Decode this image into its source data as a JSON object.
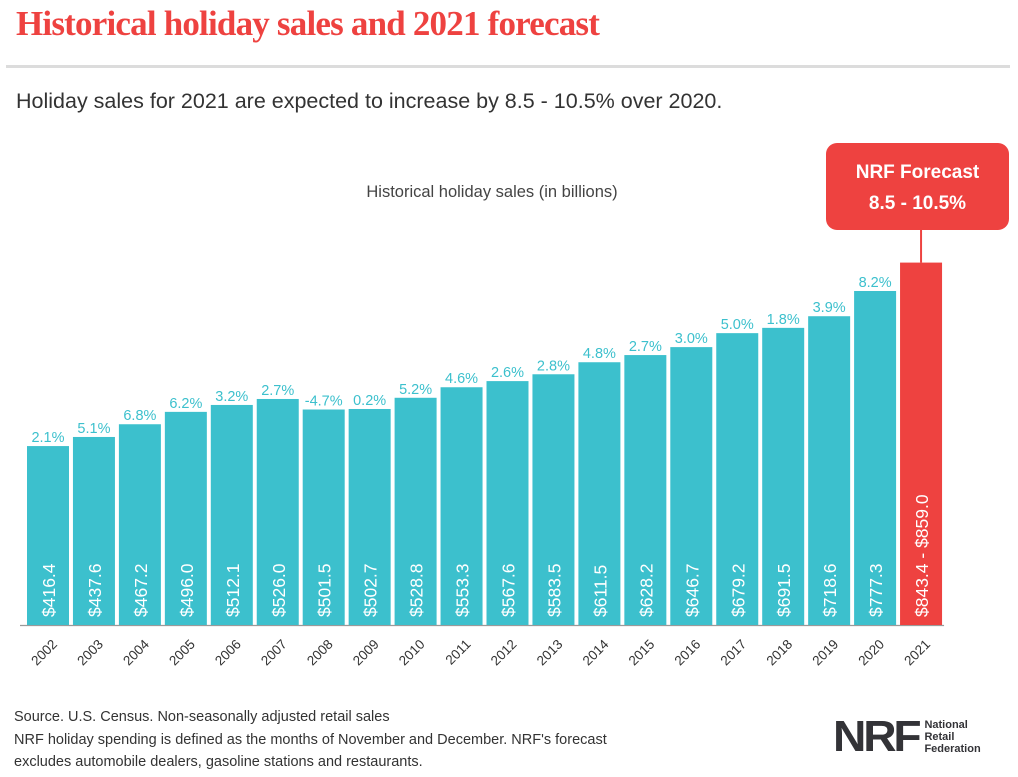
{
  "header": {
    "title": "Historical holiday sales and 2021 forecast",
    "subtitle": "Holiday sales for 2021 are expected to increase by 8.5 - 10.5% over 2020."
  },
  "colors": {
    "title": "#ee4240",
    "bar": "#3cc0cd",
    "forecast": "#ee4240",
    "pct_label": "#3cc0cd",
    "axis": "#9a9a9a"
  },
  "chart_data": {
    "type": "bar",
    "title": "Historical holiday sales (in billions)",
    "xlabel": "",
    "ylabel": "",
    "categories": [
      "2002",
      "2003",
      "2004",
      "2005",
      "2006",
      "2007",
      "2008",
      "2009",
      "2010",
      "2011",
      "2012",
      "2013",
      "2014",
      "2015",
      "2016",
      "2017",
      "2018",
      "2019",
      "2020",
      "2021"
    ],
    "values": [
      416.4,
      437.6,
      467.2,
      496.0,
      512.1,
      526.0,
      501.5,
      502.7,
      528.8,
      553.3,
      567.6,
      583.5,
      611.5,
      628.2,
      646.7,
      679.2,
      691.5,
      718.6,
      777.3,
      843.4
    ],
    "value_labels": [
      "$416.4",
      "$437.6",
      "$467.2",
      "$496.0",
      "$512.1",
      "$526.0",
      "$501.5",
      "$502.7",
      "$528.8",
      "$553.3",
      "$567.6",
      "$583.5",
      "$611.5",
      "$628.2",
      "$646.7",
      "$679.2",
      "$691.5",
      "$718.6",
      "$777.3",
      "$843.4 - $859.0"
    ],
    "growth_labels": [
      "2.1%",
      "5.1%",
      "6.8%",
      "6.2%",
      "3.2%",
      "2.7%",
      "-4.7%",
      "0.2%",
      "5.2%",
      "4.6%",
      "2.6%",
      "2.8%",
      "4.8%",
      "2.7%",
      "3.0%",
      "5.0%",
      "1.8%",
      "3.9%",
      "8.2%",
      ""
    ],
    "forecast": {
      "category": "2021",
      "range": [
        843.4,
        859.0
      ],
      "callout_line1": "NRF Forecast",
      "callout_line2": "8.5 - 10.5%"
    },
    "ylim": [
      0,
      860
    ],
    "grid": false,
    "legend": "none"
  },
  "footer": {
    "source": "Source. U.S. Census. Non-seasonally adjusted retail sales",
    "note_line1": "NRF holiday spending is defined as the months of November and December. NRF's forecast",
    "note_line2": "excludes automobile dealers, gasoline stations and restaurants."
  },
  "logo": {
    "mark": "NRF",
    "line1": "National",
    "line2": "Retail",
    "line3": "Federation"
  }
}
